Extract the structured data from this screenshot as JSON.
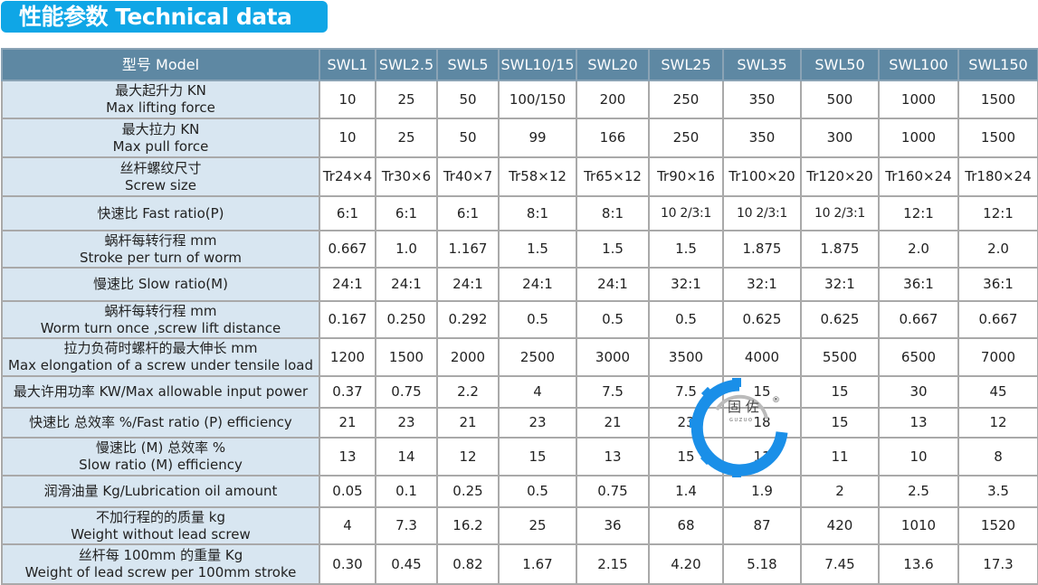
{
  "title": "性能参数 Technical data",
  "table": {
    "header_label": "型号 Model",
    "models": [
      "SWL1",
      "SWL2.5",
      "SWL5",
      "SWL10/15",
      "SWL20",
      "SWL25",
      "SWL35",
      "SWL50",
      "SWL100",
      "SWL150"
    ],
    "rows": [
      {
        "label": [
          "最大起升力 KN",
          "Max lifting force"
        ],
        "values": [
          "10",
          "25",
          "50",
          "100/150",
          "200",
          "250",
          "350",
          "500",
          "1000",
          "1500"
        ]
      },
      {
        "label": [
          "最大拉力 KN",
          "Max pull force"
        ],
        "values": [
          "10",
          "25",
          "50",
          "99",
          "166",
          "250",
          "350",
          "300",
          "1000",
          "1500"
        ]
      },
      {
        "label": [
          "丝杆螺纹尺寸",
          "Screw size"
        ],
        "values": [
          "Tr24×4",
          "Tr30×6",
          "Tr40×7",
          "Tr58×12",
          "Tr65×12",
          "Tr90×16",
          "Tr100×20",
          "Tr120×20",
          "Tr160×24",
          "Tr180×24"
        ]
      },
      {
        "label": [
          "快速比 Fast ratio(P)"
        ],
        "values": [
          "6:1",
          "6:1",
          "6:1",
          "8:1",
          "8:1",
          "10 2/3:1",
          "10 2/3:1",
          "10 2/3:1",
          "12:1",
          "12:1"
        ]
      },
      {
        "label": [
          "蜗杆每转行程 mm",
          "Stroke per turn of worm"
        ],
        "values": [
          "0.667",
          "1.0",
          "1.167",
          "1.5",
          "1.5",
          "1.5",
          "1.875",
          "1.875",
          "2.0",
          "2.0"
        ]
      },
      {
        "label": [
          "慢速比 Slow ratio(M)"
        ],
        "values": [
          "24:1",
          "24:1",
          "24:1",
          "24:1",
          "24:1",
          "32:1",
          "32:1",
          "32:1",
          "36:1",
          "36:1"
        ]
      },
      {
        "label": [
          "蜗杆每转行程 mm",
          "Worm turn once ,screw lift distance"
        ],
        "values": [
          "0.167",
          "0.250",
          "0.292",
          "0.5",
          "0.5",
          "0.5",
          "0.625",
          "0.625",
          "0.667",
          "0.667"
        ]
      },
      {
        "label": [
          "拉力负荷时螺杆的最大伸长 mm",
          "Max elongation of a screw under tensile load"
        ],
        "values": [
          "1200",
          "1500",
          "2000",
          "2500",
          "3000",
          "3500",
          "4000",
          "5500",
          "6500",
          "7000"
        ]
      },
      {
        "label": [
          "最大许用功率 KW/Max allowable input power"
        ],
        "values": [
          "0.37",
          "0.75",
          "2.2",
          "4",
          "7.5",
          "7.5",
          "15",
          "15",
          "30",
          "45"
        ]
      },
      {
        "label": [
          "快速比 总效率 %/Fast ratio (P) efficiency"
        ],
        "values": [
          "21",
          "23",
          "21",
          "23",
          "21",
          "23",
          "18",
          "15",
          "13",
          "12"
        ]
      },
      {
        "label": [
          "慢速比 (M) 总效率 %",
          "Slow ratio (M) efficiency"
        ],
        "values": [
          "13",
          "14",
          "12",
          "15",
          "13",
          "15",
          "11",
          "11",
          "10",
          "8"
        ]
      },
      {
        "label": [
          "润滑油量 Kg/Lubrication oil amount"
        ],
        "values": [
          "0.05",
          "0.1",
          "0.25",
          "0.5",
          "0.75",
          "1.4",
          "1.9",
          "2",
          "2.5",
          "3.5"
        ]
      },
      {
        "label": [
          "不加行程的的质量 kg",
          "Weight without lead screw"
        ],
        "values": [
          "4",
          "7.3",
          "16.2",
          "25",
          "36",
          "68",
          "87",
          "420",
          "1010",
          "1520"
        ]
      },
      {
        "label": [
          "丝杆每 100mm 的重量 Kg",
          "Weight of lead screw per 100mm stroke"
        ],
        "values": [
          "0.30",
          "0.45",
          "0.82",
          "1.67",
          "2.15",
          "4.20",
          "5.18",
          "7.45",
          "13.6",
          "17.3"
        ]
      }
    ]
  },
  "watermark": {
    "text": "固 佐",
    "sub": "G U   Z U O",
    "mark": "®"
  },
  "colors": {
    "title_bg": "#0fa6e6",
    "header_bg": "#5e88a3",
    "label_bg": "#d8e6f1",
    "logo_blue": "#1a8fe8"
  }
}
